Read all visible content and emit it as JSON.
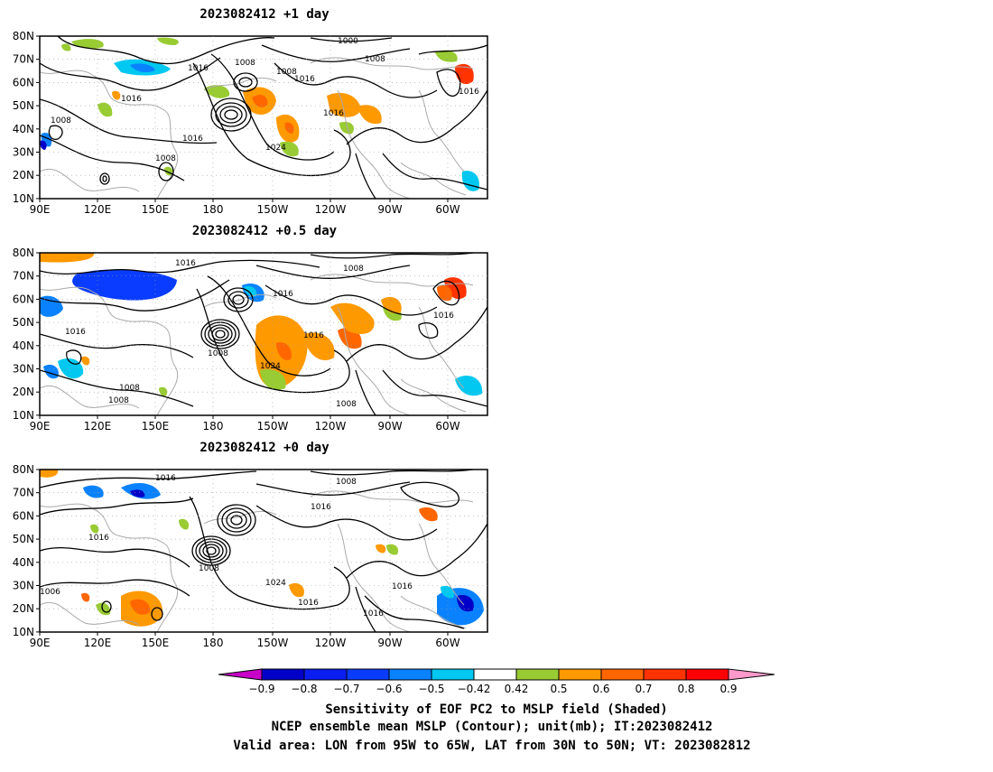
{
  "panels": [
    {
      "title": "2023082412  +1 day",
      "labels": [
        "1000",
        "1008",
        "1008",
        "1016",
        "1008",
        "1016",
        "1016",
        "1008",
        "1016",
        "1016",
        "1024",
        "1008",
        "1016"
      ],
      "patches": [
        {
          "c": "#99cc33"
        },
        {
          "c": "#99cc33"
        },
        {
          "c": "#00c8f0"
        },
        {
          "c": "#0a82ff"
        },
        {
          "c": "#ff9900"
        },
        {
          "c": "#ff6600"
        },
        {
          "c": "#99cc33"
        },
        {
          "c": "#ff9900"
        },
        {
          "c": "#ff6600"
        },
        {
          "c": "#99cc33"
        },
        {
          "c": "#ff9900"
        },
        {
          "c": "#99cc33"
        },
        {
          "c": "#ff9900"
        },
        {
          "c": "#ff3300"
        },
        {
          "c": "#99cc33"
        },
        {
          "c": "#00c8f0"
        },
        {
          "c": "#0a82ff"
        },
        {
          "c": "#99cc33"
        },
        {
          "c": "#0000c8"
        },
        {
          "c": "#99cc33"
        },
        {
          "c": "#ff9900"
        },
        {
          "c": "#99cc33"
        }
      ]
    },
    {
      "title": "2023082412  +0.5 day",
      "labels": [
        "1016",
        "1008",
        "1016",
        "1016",
        "1008",
        "1024",
        "1016",
        "1016",
        "1008",
        "1008",
        "1008"
      ],
      "patches": [
        {
          "c": "#0000c8"
        },
        {
          "c": "#0a3cff"
        },
        {
          "c": "#0a82ff"
        },
        {
          "c": "#00c8f0"
        },
        {
          "c": "#ff9900"
        },
        {
          "c": "#0a82ff"
        },
        {
          "c": "#00c8f0"
        },
        {
          "c": "#ff9900"
        },
        {
          "c": "#ff6600"
        },
        {
          "c": "#99cc33"
        },
        {
          "c": "#ff9900"
        },
        {
          "c": "#ff6600"
        },
        {
          "c": "#ff9900"
        },
        {
          "c": "#ff3300"
        },
        {
          "c": "#99cc33"
        },
        {
          "c": "#ff9900"
        },
        {
          "c": "#ff6600"
        },
        {
          "c": "#0a82ff"
        },
        {
          "c": "#00c8f0"
        },
        {
          "c": "#99cc33"
        },
        {
          "c": "#ff9900"
        }
      ]
    },
    {
      "title": "2023082412  +0 day",
      "labels": [
        "1016",
        "1008",
        "1016",
        "1016",
        "1008",
        "1024",
        "1016",
        "1016",
        "1016",
        "1006"
      ],
      "patches": [
        {
          "c": "#0a82ff"
        },
        {
          "c": "#0000c8"
        },
        {
          "c": "#ff9900"
        },
        {
          "c": "#ff6600"
        },
        {
          "c": "#99cc33"
        },
        {
          "c": "#ff9900"
        },
        {
          "c": "#99cc33"
        },
        {
          "c": "#99cc33"
        },
        {
          "c": "#ff9900"
        },
        {
          "c": "#0a82ff"
        },
        {
          "c": "#0000c8"
        },
        {
          "c": "#00c8f0"
        },
        {
          "c": "#ff6600"
        },
        {
          "c": "#99cc33"
        },
        {
          "c": "#ff6600"
        },
        {
          "c": "#ff9900"
        },
        {
          "c": "#ff6600"
        }
      ]
    }
  ],
  "lat_ticks": [
    "80N",
    "70N",
    "60N",
    "50N",
    "40N",
    "30N",
    "20N",
    "10N"
  ],
  "lon_ticks": [
    "90E",
    "120E",
    "150E",
    "180",
    "150W",
    "120W",
    "90W",
    "60W"
  ],
  "colorbar": {
    "colors": [
      "#c800c8",
      "#0000c8",
      "#0a1ef0",
      "#0a3cff",
      "#0a82ff",
      "#00c8f0",
      "#ffffff",
      "#99cc33",
      "#ff9900",
      "#ff6600",
      "#ff3300",
      "#ff0000",
      "#ff99cc"
    ],
    "labels": [
      "−0.9",
      "−0.8",
      "−0.7",
      "−0.6",
      "−0.5",
      "−0.42",
      "0.42",
      "0.5",
      "0.6",
      "0.7",
      "0.8",
      "0.9"
    ]
  },
  "footer": {
    "line1": "Sensitivity of EOF PC2 to MSLP field (Shaded)",
    "line2": "NCEP ensemble mean MSLP (Contour); unit(mb); IT:2023082412",
    "line3": "Valid area: LON from 95W to 65W, LAT from 30N to 50N; VT: 2023082812"
  }
}
